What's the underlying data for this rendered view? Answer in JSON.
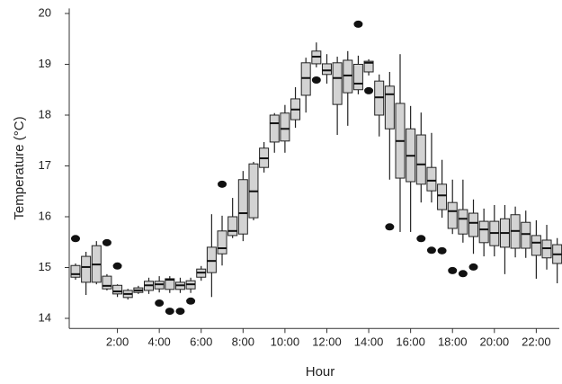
{
  "chart_data": {
    "type": "box",
    "x_label": "Hour",
    "y_label": "Temperature (°C)",
    "x": [
      0,
      0.5,
      1,
      1.5,
      2,
      2.5,
      3,
      3.5,
      4,
      4.5,
      5,
      5.5,
      6,
      6.5,
      7,
      7.5,
      8,
      8.5,
      9,
      9.5,
      10,
      10.5,
      11,
      11.5,
      12,
      12.5,
      13,
      13.5,
      14,
      14.5,
      15,
      15.5,
      16,
      16.5,
      17,
      17.5,
      18,
      18.5,
      19,
      19.5,
      20,
      20.5,
      21,
      21.5,
      22,
      22.5,
      23
    ],
    "boxes": [
      [
        14.76,
        14.81,
        14.87,
        15.04,
        15.08
      ],
      [
        14.46,
        14.71,
        15.01,
        15.22,
        15.31
      ],
      [
        14.67,
        14.71,
        15.06,
        15.43,
        15.52
      ],
      [
        14.55,
        14.58,
        14.64,
        14.83,
        14.87
      ],
      [
        14.42,
        14.48,
        14.53,
        14.65,
        14.67
      ],
      [
        14.37,
        14.41,
        14.48,
        14.55,
        14.58
      ],
      [
        14.48,
        14.51,
        14.55,
        14.6,
        14.64
      ],
      [
        14.48,
        14.55,
        14.65,
        14.73,
        14.8
      ],
      [
        14.51,
        14.58,
        14.67,
        14.73,
        14.83
      ],
      [
        14.5,
        14.57,
        14.76,
        14.78,
        14.83
      ],
      [
        14.5,
        14.57,
        14.65,
        14.71,
        14.8
      ],
      [
        14.5,
        14.58,
        14.67,
        14.74,
        14.8
      ],
      [
        14.74,
        14.81,
        14.9,
        14.97,
        15.03
      ],
      [
        14.42,
        14.9,
        15.13,
        15.4,
        16.05
      ],
      [
        15.04,
        15.27,
        15.38,
        15.72,
        16.02
      ],
      [
        15.58,
        15.63,
        15.72,
        16.0,
        16.37
      ],
      [
        15.52,
        15.66,
        16.07,
        16.73,
        16.9
      ],
      [
        15.93,
        15.98,
        16.5,
        17.04,
        17.08
      ],
      [
        16.87,
        16.97,
        17.15,
        17.35,
        17.47
      ],
      [
        17.26,
        17.47,
        17.84,
        18.0,
        18.04
      ],
      [
        17.26,
        17.49,
        17.73,
        18.04,
        18.2
      ],
      [
        17.75,
        17.91,
        18.11,
        18.32,
        18.55
      ],
      [
        18.05,
        18.39,
        18.73,
        19.03,
        19.13
      ],
      [
        18.94,
        19.01,
        19.15,
        19.26,
        19.43
      ],
      [
        18.62,
        18.8,
        18.88,
        19.01,
        19.2
      ],
      [
        17.61,
        18.21,
        18.73,
        19.03,
        19.15
      ],
      [
        17.79,
        18.44,
        18.78,
        19.08,
        19.26
      ],
      [
        18.41,
        18.5,
        18.62,
        19.0,
        19.17
      ],
      [
        18.78,
        18.85,
        19.03,
        19.06,
        19.1
      ],
      [
        17.58,
        18.0,
        18.35,
        18.67,
        18.8
      ],
      [
        16.73,
        17.73,
        18.41,
        18.57,
        18.85
      ],
      [
        15.7,
        16.76,
        17.49,
        18.23,
        19.2
      ],
      [
        15.7,
        16.69,
        17.2,
        17.73,
        18.18
      ],
      [
        16.28,
        16.64,
        17.03,
        17.61,
        18.05
      ],
      [
        16.28,
        16.51,
        16.71,
        16.97,
        17.65
      ],
      [
        15.98,
        16.14,
        16.42,
        16.64,
        17.12
      ],
      [
        15.66,
        15.77,
        16.11,
        16.28,
        16.73
      ],
      [
        15.49,
        15.66,
        15.96,
        16.14,
        16.73
      ],
      [
        15.27,
        15.61,
        15.88,
        16.07,
        16.34
      ],
      [
        15.22,
        15.49,
        15.75,
        15.91,
        16.16
      ],
      [
        15.22,
        15.43,
        15.68,
        15.91,
        16.23
      ],
      [
        14.87,
        15.4,
        15.68,
        15.96,
        16.23
      ],
      [
        15.2,
        15.38,
        15.72,
        16.04,
        16.2
      ],
      [
        15.19,
        15.38,
        15.66,
        15.89,
        16.12
      ],
      [
        14.78,
        15.24,
        15.49,
        15.63,
        15.93
      ],
      [
        14.96,
        15.19,
        15.38,
        15.54,
        15.84
      ],
      [
        14.69,
        15.08,
        15.26,
        15.45,
        15.58
      ]
    ],
    "box_color": "#d3d3d3",
    "outliers": {
      "x": [
        0,
        1.5,
        2,
        4,
        4.5,
        5,
        5.5,
        7,
        11.5,
        13.5,
        14,
        15,
        16.5,
        17,
        17.5,
        18,
        18.5,
        19
      ],
      "values": [
        15.57,
        15.49,
        15.03,
        14.3,
        14.14,
        14.14,
        14.34,
        16.64,
        18.69,
        19.79,
        18.48,
        15.8,
        15.57,
        15.34,
        15.33,
        14.94,
        14.88,
        15.01
      ],
      "color": "#111111"
    },
    "xlim": [
      -0.3,
      23.1
    ],
    "xticks": [
      {
        "value": 2,
        "label": "2:00"
      },
      {
        "value": 4,
        "label": "4:00"
      },
      {
        "value": 6,
        "label": "6:00"
      },
      {
        "value": 8,
        "label": "8:00"
      },
      {
        "value": 10,
        "label": "10:00"
      },
      {
        "value": 12,
        "label": "12:00"
      },
      {
        "value": 14,
        "label": "14:00"
      },
      {
        "value": 16,
        "label": "16:00"
      },
      {
        "value": 18,
        "label": "18:00"
      },
      {
        "value": 20,
        "label": "20:00"
      },
      {
        "value": 22,
        "label": "22:00"
      }
    ],
    "ylim": [
      13.8,
      20.1
    ],
    "yticks": [
      14,
      15,
      16,
      17,
      18,
      19,
      20
    ],
    "grid": false
  }
}
